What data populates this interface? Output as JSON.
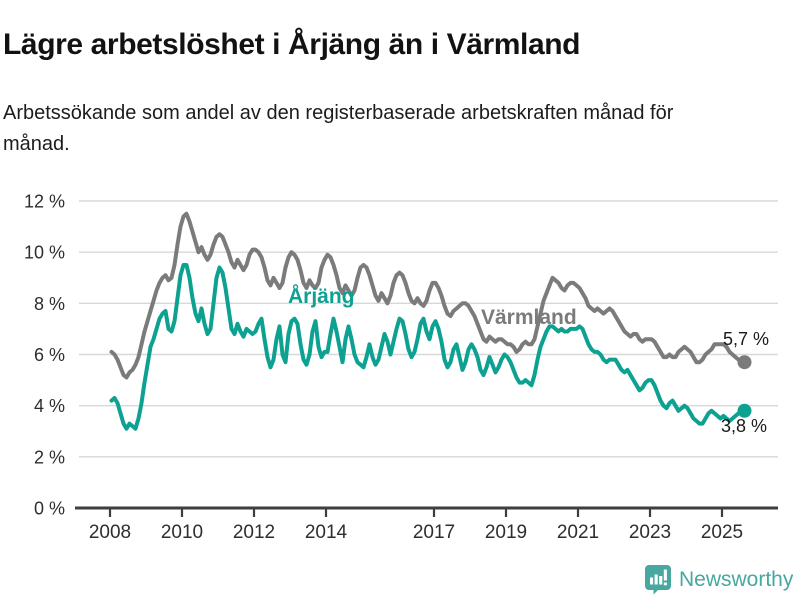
{
  "header": {
    "title": "Lägre arbetslöshet i Årjäng än i Värmland",
    "subtitle": "Arbetssökande som andel av den registerbaserade arbetskraften månad för månad."
  },
  "chart_data": {
    "type": "line",
    "unit": "%",
    "x_start": "2008-01",
    "x_end": "2025-08",
    "points_per_year": 12,
    "grid": true,
    "legend": "inline-labels",
    "ylim": [
      0,
      12
    ],
    "yticks": [
      {
        "value": 12,
        "label": "12 %"
      },
      {
        "value": 10,
        "label": "10 %"
      },
      {
        "value": 8,
        "label": "8 %"
      },
      {
        "value": 6,
        "label": "6 %"
      },
      {
        "value": 4,
        "label": "4 %"
      },
      {
        "value": 2,
        "label": "2 %"
      },
      {
        "value": 0,
        "label": "0 %"
      }
    ],
    "xticks": [
      {
        "year": 2008,
        "label": "2008"
      },
      {
        "year": 2010,
        "label": "2010"
      },
      {
        "year": 2012,
        "label": "2012"
      },
      {
        "year": 2014,
        "label": "2014"
      },
      {
        "year": 2017,
        "label": "2017"
      },
      {
        "year": 2019,
        "label": "2019"
      },
      {
        "year": 2021,
        "label": "2021"
      },
      {
        "year": 2023,
        "label": "2023"
      },
      {
        "year": 2025,
        "label": "2025"
      }
    ],
    "series": [
      {
        "name": "Värmland",
        "color": "#7b7b7b",
        "end_label": "5,7 %",
        "end_value": 5.7,
        "values": [
          6.1,
          6.0,
          5.8,
          5.5,
          5.2,
          5.1,
          5.3,
          5.4,
          5.6,
          5.9,
          6.4,
          6.9,
          7.3,
          7.7,
          8.1,
          8.5,
          8.8,
          9.0,
          9.1,
          8.9,
          9.0,
          9.5,
          10.3,
          11.0,
          11.4,
          11.5,
          11.2,
          10.8,
          10.4,
          10.0,
          10.2,
          9.9,
          9.7,
          9.9,
          10.3,
          10.6,
          10.7,
          10.6,
          10.3,
          10.0,
          9.6,
          9.4,
          9.7,
          9.5,
          9.3,
          9.5,
          9.9,
          10.1,
          10.1,
          10.0,
          9.8,
          9.4,
          8.9,
          8.7,
          9.0,
          8.8,
          8.6,
          8.8,
          9.4,
          9.8,
          10.0,
          9.9,
          9.7,
          9.3,
          8.8,
          8.6,
          8.9,
          8.7,
          8.6,
          8.8,
          9.4,
          9.7,
          9.9,
          9.8,
          9.5,
          9.1,
          8.6,
          8.4,
          8.7,
          8.5,
          8.3,
          8.5,
          9.0,
          9.4,
          9.5,
          9.4,
          9.1,
          8.7,
          8.3,
          8.1,
          8.4,
          8.2,
          8.0,
          8.3,
          8.8,
          9.1,
          9.2,
          9.1,
          8.8,
          8.4,
          8.1,
          8.0,
          8.2,
          8.0,
          7.9,
          8.1,
          8.5,
          8.8,
          8.8,
          8.6,
          8.3,
          7.9,
          7.6,
          7.5,
          7.7,
          7.8,
          7.9,
          8.0,
          8.0,
          7.9,
          7.7,
          7.5,
          7.2,
          6.9,
          6.6,
          6.5,
          6.7,
          6.6,
          6.5,
          6.6,
          6.6,
          6.5,
          6.4,
          6.4,
          6.3,
          6.1,
          6.2,
          6.4,
          6.5,
          6.4,
          6.4,
          6.6,
          7.1,
          7.6,
          8.1,
          8.4,
          8.7,
          9.0,
          8.9,
          8.8,
          8.6,
          8.5,
          8.7,
          8.8,
          8.8,
          8.7,
          8.6,
          8.4,
          8.2,
          7.9,
          7.8,
          7.7,
          7.8,
          7.7,
          7.6,
          7.7,
          7.8,
          7.7,
          7.5,
          7.3,
          7.1,
          6.9,
          6.8,
          6.7,
          6.8,
          6.8,
          6.6,
          6.5,
          6.6,
          6.6,
          6.6,
          6.5,
          6.3,
          6.1,
          5.9,
          5.9,
          6.0,
          5.9,
          5.9,
          6.1,
          6.2,
          6.3,
          6.2,
          6.1,
          5.9,
          5.7,
          5.7,
          5.8,
          6.0,
          6.1,
          6.2,
          6.4,
          6.4,
          6.4,
          6.4,
          6.3,
          6.1,
          6.0,
          5.9,
          5.8,
          5.7,
          5.7
        ]
      },
      {
        "name": "Årjäng",
        "color": "#0da192",
        "end_label": "3,8 %",
        "end_value": 3.8,
        "values": [
          4.2,
          4.3,
          4.1,
          3.7,
          3.3,
          3.1,
          3.3,
          3.2,
          3.1,
          3.5,
          4.1,
          4.9,
          5.6,
          6.3,
          6.6,
          7.0,
          7.4,
          7.6,
          7.7,
          7.0,
          6.9,
          7.3,
          8.2,
          9.1,
          9.5,
          9.5,
          9.0,
          8.2,
          7.6,
          7.3,
          7.8,
          7.2,
          6.8,
          7.0,
          8.0,
          9.0,
          9.4,
          9.2,
          8.6,
          7.8,
          7.0,
          6.8,
          7.2,
          6.9,
          6.7,
          7.0,
          6.9,
          6.8,
          6.9,
          7.2,
          7.4,
          6.6,
          5.9,
          5.5,
          5.8,
          6.6,
          7.1,
          6.0,
          5.7,
          6.8,
          7.3,
          7.4,
          7.2,
          6.4,
          5.8,
          5.6,
          6.0,
          6.9,
          7.3,
          6.3,
          5.9,
          6.1,
          6.1,
          6.8,
          7.4,
          6.9,
          6.3,
          5.7,
          6.6,
          7.1,
          6.6,
          6.0,
          5.7,
          5.6,
          5.5,
          5.9,
          6.4,
          5.9,
          5.6,
          5.8,
          6.3,
          6.8,
          6.5,
          6.0,
          6.5,
          7.0,
          7.4,
          7.3,
          6.8,
          6.2,
          5.9,
          6.1,
          6.6,
          7.2,
          7.4,
          6.9,
          6.6,
          7.1,
          7.3,
          7.0,
          6.5,
          5.8,
          5.5,
          5.7,
          6.2,
          6.4,
          5.9,
          5.4,
          5.7,
          6.2,
          6.4,
          6.2,
          5.9,
          5.4,
          5.2,
          5.5,
          5.9,
          5.6,
          5.3,
          5.5,
          5.8,
          6.0,
          5.9,
          5.7,
          5.4,
          5.1,
          4.9,
          4.9,
          5.0,
          4.9,
          4.8,
          5.2,
          5.8,
          6.3,
          6.6,
          6.9,
          7.1,
          7.1,
          7.0,
          6.9,
          7.0,
          6.9,
          6.9,
          7.0,
          7.0,
          7.0,
          7.1,
          7.0,
          6.7,
          6.4,
          6.2,
          6.1,
          6.1,
          6.0,
          5.8,
          5.7,
          5.8,
          5.8,
          5.8,
          5.6,
          5.4,
          5.3,
          5.4,
          5.2,
          5.0,
          4.8,
          4.6,
          4.7,
          4.9,
          5.0,
          5.0,
          4.8,
          4.5,
          4.2,
          4.0,
          3.9,
          4.1,
          4.2,
          4.0,
          3.8,
          3.9,
          4.0,
          3.9,
          3.7,
          3.5,
          3.4,
          3.3,
          3.3,
          3.5,
          3.7,
          3.8,
          3.7,
          3.6,
          3.5,
          3.6,
          3.5,
          3.4,
          3.5,
          3.6,
          3.7,
          3.7,
          3.8
        ]
      }
    ],
    "style": {
      "grid_color": "#d8d8d8",
      "axis_color": "#3e3e3e",
      "tick_label_color": "#2e2e2e",
      "line_width": 4
    }
  },
  "branding": {
    "logo_text": "Newsworthy",
    "logo_color": "#48a79f",
    "logo_icon": "bar-chart-speech-bubble"
  }
}
